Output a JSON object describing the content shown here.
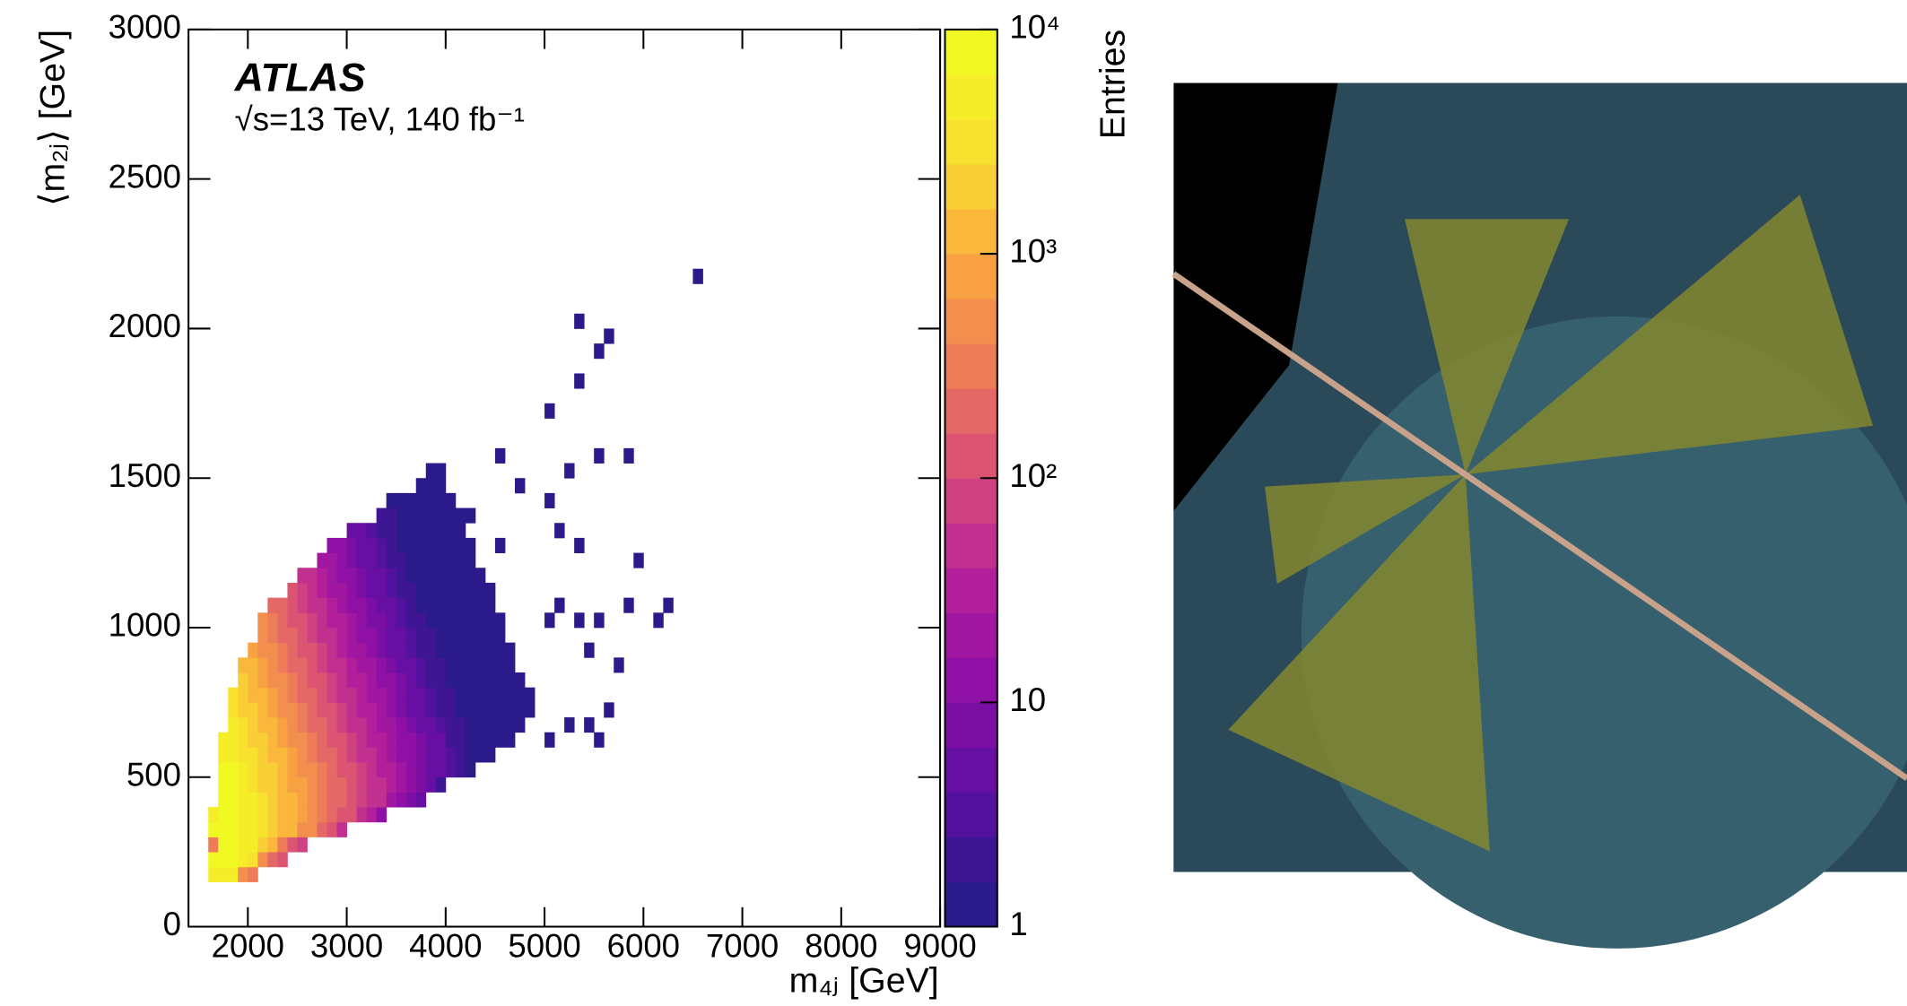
{
  "chart_data": {
    "type": "heatmap",
    "atlas_label": "ATLAS",
    "subtitle": "√s=13 TeV, 140 fb⁻¹",
    "x_label": "m₄ⱼ [GeV]",
    "y_label": "⟨m₂ⱼ⟩ [GeV]",
    "z_label": "Entries",
    "xlim": [
      1400,
      9000
    ],
    "xticks": [
      2000,
      3000,
      4000,
      5000,
      6000,
      7000,
      8000,
      9000
    ],
    "ylim": [
      0,
      3000
    ],
    "yticks": [
      0,
      500,
      1000,
      1500,
      2000,
      2500,
      3000
    ],
    "zlim": [
      1,
      10000
    ],
    "zticks": [
      1,
      10,
      {
        "value": 100,
        "label": "10²"
      },
      {
        "value": 1000,
        "label": "10³"
      },
      {
        "value": 10000,
        "label": "10⁴"
      }
    ],
    "zscale": "log",
    "colormap": [
      "#2a1a8a",
      "#5a10a0",
      "#8a0ea6",
      "#b5209a",
      "#d64b7a",
      "#ec7a5a",
      "#f8a640",
      "#fadc32",
      "#f0f921"
    ],
    "xbin": 100,
    "ybin": 50,
    "rows": [
      {
        "y": 150,
        "x0": 1600,
        "values": [
          5000,
          6000,
          5000,
          600,
          300
        ]
      },
      {
        "y": 200,
        "x0": 1600,
        "values": [
          7000,
          9000,
          8000,
          5000,
          3000,
          500,
          200,
          100
        ]
      },
      {
        "y": 250,
        "x0": 1600,
        "values": [
          300,
          9000,
          8000,
          5600,
          4000,
          2500,
          1500,
          300,
          150,
          80
        ]
      },
      {
        "y": 300,
        "x0": 1600,
        "values": [
          8000,
          9000,
          8000,
          5600,
          4000,
          2800,
          2000,
          1400,
          1000,
          600,
          400,
          200,
          100,
          50
        ]
      },
      {
        "y": 350,
        "x0": 1600,
        "values": [
          6000,
          9000,
          8000,
          5600,
          4000,
          2800,
          2000,
          1400,
          1000,
          700,
          500,
          350,
          250,
          150,
          100,
          60,
          30,
          15
        ]
      },
      {
        "y": 400,
        "x0": 1700,
        "values": [
          9000,
          8000,
          5600,
          4000,
          2800,
          2000,
          1400,
          1000,
          700,
          500,
          350,
          250,
          180,
          125,
          90,
          60,
          40,
          25,
          15,
          8,
          4
        ]
      },
      {
        "y": 450,
        "x0": 1700,
        "values": [
          8000,
          7500,
          5000,
          3600,
          2500,
          1800,
          1300,
          900,
          650,
          450,
          320,
          230,
          160,
          110,
          80,
          56,
          40,
          28,
          20,
          14,
          9,
          5,
          2
        ]
      },
      {
        "y": 500,
        "x0": 1700,
        "values": [
          7000,
          6400,
          4500,
          3200,
          2200,
          1600,
          1100,
          800,
          560,
          400,
          280,
          200,
          145,
          100,
          72,
          50,
          36,
          26,
          18,
          13,
          9,
          6,
          5,
          3,
          2,
          1
        ]
      },
      {
        "y": 550,
        "x0": 1700,
        "values": [
          6000,
          5600,
          3900,
          2800,
          2000,
          1400,
          1000,
          700,
          490,
          350,
          245,
          175,
          125,
          88,
          63,
          44,
          32,
          22,
          15,
          11,
          8,
          6,
          4,
          3,
          2,
          1,
          1,
          1
        ]
      },
      {
        "y": 600,
        "x0": 1700,
        "values": [
          5000,
          4800,
          3400,
          2400,
          1700,
          1200,
          840,
          600,
          420,
          300,
          210,
          150,
          110,
          75,
          54,
          38,
          27,
          19,
          13,
          10,
          7,
          5,
          4,
          2,
          2,
          1,
          1,
          1,
          1,
          1
        ]
      },
      {
        "y": 650,
        "x0": 1800,
        "values": [
          4000,
          2800,
          2000,
          1400,
          1000,
          700,
          500,
          350,
          250,
          175,
          125,
          90,
          63,
          45,
          32,
          22,
          16,
          11,
          8,
          6,
          4,
          3,
          2,
          2,
          1,
          1,
          1,
          1,
          1,
          1
        ]
      },
      {
        "y": 700,
        "x0": 1800,
        "values": [
          3200,
          2200,
          1600,
          1100,
          800,
          560,
          400,
          280,
          200,
          140,
          100,
          72,
          50,
          36,
          26,
          18,
          13,
          9,
          6,
          4,
          3,
          2,
          2,
          1,
          1,
          1,
          1,
          1,
          1,
          1,
          1
        ]
      },
      {
        "y": 750,
        "x0": 1800,
        "values": [
          2800,
          2000,
          1400,
          1000,
          700,
          490,
          350,
          245,
          175,
          122,
          88,
          63,
          44,
          32,
          22,
          16,
          11,
          8,
          6,
          4,
          3,
          2,
          2,
          1,
          1,
          1,
          1,
          1,
          1,
          1,
          1
        ]
      },
      {
        "y": 800,
        "x0": 1900,
        "values": [
          1700,
          1200,
          840,
          600,
          420,
          300,
          210,
          150,
          105,
          75,
          54,
          38,
          27,
          19,
          13,
          10,
          7,
          5,
          3,
          2,
          2,
          1,
          1,
          1,
          1,
          1,
          1,
          1,
          1
        ]
      },
      {
        "y": 850,
        "x0": 1900,
        "values": [
          1400,
          1000,
          700,
          500,
          350,
          250,
          175,
          125,
          88,
          63,
          45,
          32,
          22,
          16,
          11,
          8,
          6,
          4,
          3,
          2,
          2,
          1,
          1,
          1,
          1,
          1,
          1,
          1
        ]
      },
      {
        "y": 900,
        "x0": 2000,
        "values": [
          800,
          560,
          400,
          280,
          200,
          140,
          100,
          70,
          50,
          36,
          25,
          18,
          13,
          9,
          6,
          5,
          3,
          2,
          2,
          1,
          1,
          1,
          1,
          1,
          1,
          1,
          1
        ]
      },
      {
        "y": 950,
        "x0": 2100,
        "values": [
          480,
          340,
          240,
          170,
          120,
          85,
          60,
          42,
          30,
          21,
          15,
          11,
          8,
          5,
          4,
          3,
          2,
          2,
          1,
          1,
          1,
          1,
          1,
          1,
          1
        ]
      },
      {
        "y": 1000,
        "x0": 2100,
        "values": [
          420,
          300,
          210,
          150,
          105,
          75,
          52,
          38,
          27,
          19,
          13,
          9,
          7,
          5,
          3,
          2,
          2,
          1,
          1,
          1,
          1,
          1,
          1,
          1,
          1
        ]
      },
      {
        "y": 1050,
        "x0": 2200,
        "values": [
          240,
          170,
          120,
          84,
          60,
          42,
          30,
          22,
          15,
          11,
          8,
          5,
          4,
          3,
          2,
          1,
          1,
          1,
          1,
          1,
          1,
          1,
          1
        ]
      },
      {
        "y": 1100,
        "x0": 2400,
        "values": [
          100,
          70,
          50,
          35,
          25,
          18,
          12,
          9,
          6,
          4,
          3,
          2,
          2,
          1,
          1,
          1,
          1,
          1,
          1,
          1,
          1
        ]
      },
      {
        "y": 1150,
        "x0": 2500,
        "values": [
          56,
          40,
          28,
          20,
          14,
          10,
          7,
          5,
          4,
          3,
          2,
          1,
          1,
          1,
          1,
          1,
          1,
          1,
          1
        ]
      },
      {
        "y": 1200,
        "x0": 2700,
        "values": [
          25,
          18,
          13,
          9,
          6,
          4,
          3,
          2,
          2,
          1,
          1,
          1,
          1,
          1,
          1,
          1
        ]
      },
      {
        "y": 1250,
        "x0": 2800,
        "values": [
          15,
          11,
          8,
          5,
          4,
          3,
          2,
          1,
          1,
          1,
          1,
          1,
          1,
          1,
          1
        ]
      },
      {
        "y": 1300,
        "x0": 3000,
        "values": [
          6,
          5,
          3,
          2,
          2,
          1,
          1,
          1,
          1,
          1,
          1,
          1
        ]
      },
      {
        "y": 1350,
        "x0": 3300,
        "values": [
          2,
          2,
          1,
          1,
          1,
          1,
          1,
          1,
          1,
          1
        ]
      },
      {
        "y": 1400,
        "x0": 3400,
        "values": [
          1,
          1,
          1,
          1,
          1,
          1,
          1
        ]
      },
      {
        "y": 1450,
        "x0": 3700,
        "values": [
          1,
          1,
          1
        ]
      },
      {
        "y": 1500,
        "x0": 3800,
        "values": [
          1,
          1
        ]
      },
      {
        "y": 1550,
        "x0": 4500,
        "values": [
          1
        ]
      },
      {
        "y": 1450,
        "x0": 4700,
        "values": [
          1
        ]
      },
      {
        "y": 1250,
        "x0": 4500,
        "values": [
          1
        ]
      },
      {
        "y": 1000,
        "x0": 5000,
        "values": [
          1
        ]
      },
      {
        "y": 1050,
        "x0": 5100,
        "values": [
          1
        ]
      },
      {
        "y": 1000,
        "x0": 5300,
        "values": [
          1
        ]
      },
      {
        "y": 1000,
        "x0": 5500,
        "values": [
          1
        ]
      },
      {
        "y": 1050,
        "x0": 5800,
        "values": [
          1
        ]
      },
      {
        "y": 900,
        "x0": 5400,
        "values": [
          1
        ]
      },
      {
        "y": 850,
        "x0": 5700,
        "values": [
          1
        ]
      },
      {
        "y": 700,
        "x0": 5600,
        "values": [
          1
        ]
      },
      {
        "y": 650,
        "x0": 5200,
        "values": [
          1
        ]
      },
      {
        "y": 650,
        "x0": 5400,
        "values": [
          1
        ]
      },
      {
        "y": 600,
        "x0": 5500,
        "values": [
          1
        ]
      },
      {
        "y": 600,
        "x0": 5000,
        "values": [
          1
        ]
      },
      {
        "y": 1200,
        "x0": 5900,
        "values": [
          1
        ]
      },
      {
        "y": 1000,
        "x0": 6100,
        "values": [
          1
        ]
      },
      {
        "y": 1050,
        "x0": 6200,
        "values": [
          1
        ]
      },
      {
        "y": 1250,
        "x0": 5300,
        "values": [
          1
        ]
      },
      {
        "y": 1300,
        "x0": 5100,
        "values": [
          1
        ]
      },
      {
        "y": 1400,
        "x0": 5000,
        "values": [
          1
        ]
      },
      {
        "y": 1500,
        "x0": 5200,
        "values": [
          1
        ]
      },
      {
        "y": 1550,
        "x0": 5500,
        "values": [
          1
        ]
      },
      {
        "y": 1550,
        "x0": 5800,
        "values": [
          1
        ]
      },
      {
        "y": 1700,
        "x0": 5000,
        "values": [
          1
        ]
      },
      {
        "y": 1800,
        "x0": 5300,
        "values": [
          1
        ]
      },
      {
        "y": 1900,
        "x0": 5500,
        "values": [
          1
        ]
      },
      {
        "y": 2000,
        "x0": 5300,
        "values": [
          1
        ]
      },
      {
        "y": 1950,
        "x0": 5600,
        "values": [
          1
        ]
      },
      {
        "y": 2150,
        "x0": 6500,
        "values": [
          1
        ]
      }
    ]
  }
}
